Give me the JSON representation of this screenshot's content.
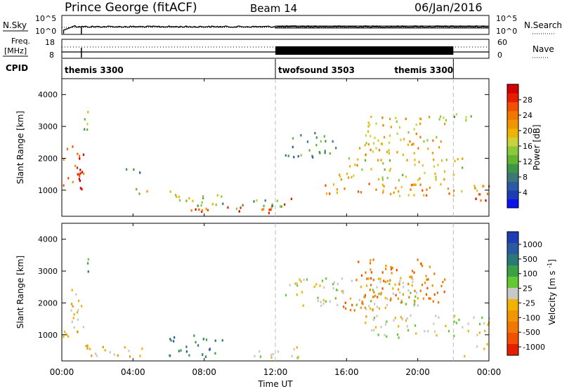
{
  "header": {
    "station": "Prince George (fitACF)",
    "beam": "Beam 14",
    "date": "06/Jan/2016"
  },
  "top_panels": {
    "nsky": {
      "label": "N.Sky",
      "ticks": [
        "10^5",
        "10^0"
      ],
      "right_ticks": [
        "10^5",
        "10^0"
      ],
      "right_label": "N.Search"
    },
    "freq": {
      "label_line1": "Freq.",
      "label_line2": "[MHz]",
      "ticks": [
        "18",
        "8"
      ],
      "right_ticks": [
        "60",
        "0"
      ],
      "right_label": "Nave"
    },
    "cpid": {
      "label": "CPID",
      "segments": [
        {
          "label": "themis 3300",
          "start_hr": 0
        },
        {
          "label": "twofsound 3503",
          "start_hr": 12
        },
        {
          "label": "themis 3300",
          "start_hr": 22
        }
      ]
    }
  },
  "x_axis": {
    "label": "Time UT",
    "ticks": [
      "00:00",
      "04:00",
      "08:00",
      "12:00",
      "16:00",
      "20:00",
      "00:00"
    ],
    "tick_hours": [
      0,
      4,
      8,
      12,
      16,
      20,
      24
    ],
    "range_hr": [
      0,
      24
    ]
  },
  "chart_data": [
    {
      "type": "heatmap",
      "title": "",
      "ylabel": "Slant Range [km]",
      "xlabel": "",
      "xlim_hr": [
        0,
        24
      ],
      "ylim_km": [
        180,
        4500
      ],
      "yticks": [
        "1000",
        "2000",
        "3000",
        "4000"
      ],
      "ytick_values": [
        1000,
        2000,
        3000,
        4000
      ],
      "colorbar": {
        "label": "Power [dB]",
        "tick_labels": [
          "4",
          "8",
          "12",
          "16",
          "20",
          "24",
          "28"
        ],
        "tick_values": [
          4,
          8,
          12,
          16,
          20,
          24,
          28
        ],
        "range": [
          0,
          32
        ],
        "colors": [
          "#0a14f0",
          "#1e3cb4",
          "#2a5aa0",
          "#3c7878",
          "#3c9646",
          "#64b432",
          "#8cc83c",
          "#c8d23c",
          "#f0b400",
          "#f09600",
          "#f07800",
          "#f05000",
          "#e61e00",
          "#d20000"
        ]
      },
      "features": [
        {
          "t0": 0.0,
          "t1": 1.2,
          "r0": 900,
          "r1": 2400,
          "level": 26
        },
        {
          "t0": 0.6,
          "t1": 1.3,
          "r0": 1100,
          "r1": 1700,
          "level": 30
        },
        {
          "t0": 1.2,
          "t1": 1.6,
          "r0": 2800,
          "r1": 3500,
          "level": 14
        },
        {
          "t0": 3.0,
          "t1": 4.5,
          "r0": 1500,
          "r1": 1700,
          "level": 8
        },
        {
          "t0": 3.6,
          "t1": 4.8,
          "r0": 800,
          "r1": 1100,
          "level": 18
        },
        {
          "t0": 6.0,
          "t1": 9.0,
          "r0": 500,
          "r1": 1000,
          "level": 16
        },
        {
          "t0": 6.8,
          "t1": 11.8,
          "r0": 250,
          "r1": 450,
          "level": 26
        },
        {
          "t0": 9.0,
          "t1": 12.5,
          "r0": 400,
          "r1": 750,
          "level": 12
        },
        {
          "t0": 12.2,
          "t1": 13.3,
          "r0": 240,
          "r1": 750,
          "level": 28
        },
        {
          "t0": 12.5,
          "t1": 15.5,
          "r0": 2000,
          "r1": 2800,
          "level": 10
        },
        {
          "t0": 14.5,
          "t1": 24.0,
          "r0": 800,
          "r1": 1200,
          "level": 22
        },
        {
          "t0": 15.5,
          "t1": 22.5,
          "r0": 1300,
          "r1": 2000,
          "level": 18
        },
        {
          "t0": 16.5,
          "t1": 21.5,
          "r0": 2100,
          "r1": 3300,
          "level": 20
        },
        {
          "t0": 21.0,
          "t1": 23.0,
          "r0": 3000,
          "r1": 3400,
          "level": 14
        },
        {
          "t0": 23.0,
          "t1": 24.0,
          "r0": 550,
          "r1": 900,
          "level": 28
        }
      ]
    },
    {
      "type": "heatmap",
      "title": "",
      "ylabel": "Slant Range [km]",
      "xlabel": "Time UT",
      "xlim_hr": [
        0,
        24
      ],
      "ylim_km": [
        180,
        4500
      ],
      "yticks": [
        "1000",
        "2000",
        "3000",
        "4000"
      ],
      "ytick_values": [
        1000,
        2000,
        3000,
        4000
      ],
      "colorbar": {
        "label": "Velocity [m s^-1]",
        "tick_labels": [
          "1000",
          "500",
          "100",
          "25",
          "-25",
          "-100",
          "-500",
          "-1000"
        ],
        "tick_values": [
          1000,
          500,
          100,
          25,
          -25,
          -100,
          -500,
          -1000
        ],
        "colors": [
          "#1e3cb4",
          "#2a5aa0",
          "#2a7878",
          "#3ca046",
          "#64c832",
          "#c8c8c8",
          "#f0b400",
          "#f09600",
          "#f07800",
          "#f05000",
          "#e61e00"
        ]
      },
      "features": [
        {
          "t0": 0.0,
          "t1": 1.2,
          "r0": 900,
          "r1": 2400,
          "level": "-100"
        },
        {
          "t0": 1.2,
          "t1": 1.6,
          "r0": 2900,
          "r1": 3500,
          "level": "25"
        },
        {
          "t0": 1.0,
          "t1": 4.5,
          "r0": 300,
          "r1": 700,
          "level": "-100"
        },
        {
          "t0": 6.0,
          "t1": 9.0,
          "r0": 300,
          "r1": 1000,
          "level": "100"
        },
        {
          "t0": 9.5,
          "t1": 12.0,
          "r0": 250,
          "r1": 500,
          "level": "-25"
        },
        {
          "t0": 12.0,
          "t1": 13.5,
          "r0": 250,
          "r1": 700,
          "level": "-25"
        },
        {
          "t0": 12.5,
          "t1": 20.0,
          "r0": 1800,
          "r1": 2800,
          "level": "-25"
        },
        {
          "t0": 15.5,
          "t1": 17.5,
          "r0": 1500,
          "r1": 2000,
          "level": "-500"
        },
        {
          "t0": 16.5,
          "t1": 21.5,
          "r0": 2000,
          "r1": 3400,
          "level": "-500"
        },
        {
          "t0": 17.0,
          "t1": 24.0,
          "r0": 900,
          "r1": 1600,
          "level": "-25"
        },
        {
          "t0": 22.5,
          "t1": 24.0,
          "r0": 300,
          "r1": 700,
          "level": "-100"
        }
      ]
    }
  ]
}
